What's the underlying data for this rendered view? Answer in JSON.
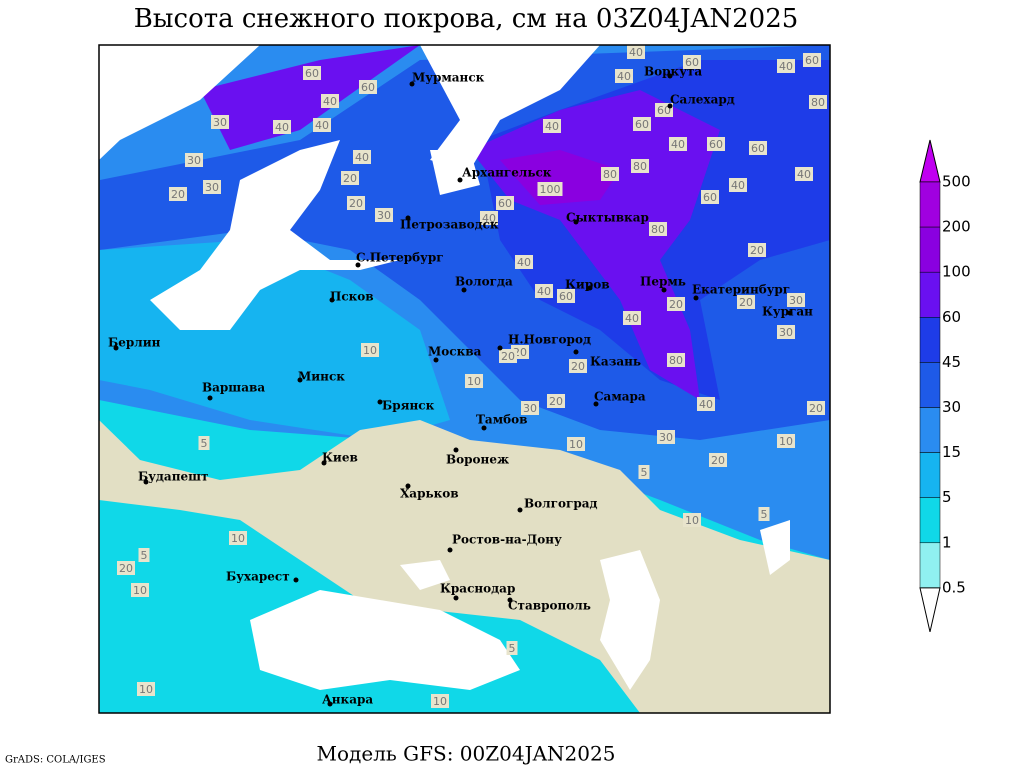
{
  "title": "Высота снежного покрова, см на 03Z04JAN2025",
  "footer": "Модель GFS: 00Z04JAN2025",
  "credit": "GrADS: COLA/IGES",
  "cities": [
    "Мурманск",
    "Воркута",
    "Салехард",
    "Архангельск",
    "Петрозаводск",
    "Сыктывкар",
    "С.Петербург",
    "Вологда",
    "Киров",
    "Пермь",
    "Екатеринбург",
    "Курган",
    "Псков",
    "Берлин",
    "Н.Новгород",
    "Москва",
    "Казань",
    "Минск",
    "Варшава",
    "Самара",
    "Брянск",
    "Тамбов",
    "Киев",
    "Воронеж",
    "Будапешт",
    "Харьков",
    "Волгоград",
    "Ростов-на-Дону",
    "Бухарест",
    "Краснодар",
    "Ставрополь",
    "Анкара"
  ],
  "contour_labels": [
    40,
    40,
    60,
    40,
    60,
    80,
    40,
    60,
    60,
    40,
    30,
    40,
    30,
    30,
    20,
    40,
    20,
    20,
    30,
    40,
    60,
    60,
    60,
    40,
    60,
    40,
    40,
    60,
    80,
    80,
    100,
    60,
    40,
    40,
    40,
    60,
    80,
    20,
    20,
    30,
    30,
    20,
    40,
    10,
    20,
    20,
    20,
    80,
    10,
    30,
    20,
    40,
    20,
    30,
    10,
    10,
    20,
    5,
    5,
    10,
    5,
    10,
    5,
    20,
    10,
    5,
    10,
    10
  ],
  "legend": {
    "values": [
      500,
      200,
      100,
      60,
      45,
      30,
      15,
      5,
      1,
      0.5
    ]
  }
}
